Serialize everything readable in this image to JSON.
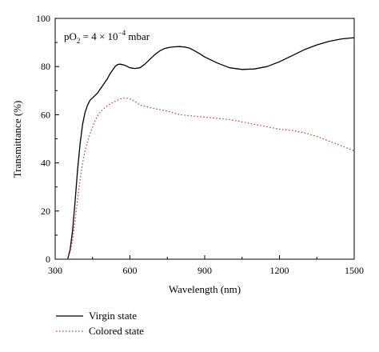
{
  "chart_data": {
    "type": "line",
    "xlabel": "Wavelength (nm)",
    "ylabel": "Transmittance (%)",
    "xlim": [
      300,
      1500
    ],
    "ylim": [
      0,
      100
    ],
    "xticks": [
      300,
      600,
      900,
      1200,
      1500
    ],
    "yticks": [
      0,
      20,
      40,
      60,
      80,
      100
    ],
    "grid": false,
    "legend_position": "bottom-left",
    "annotation": {
      "prefix": "pO",
      "subscript": "2",
      "equals": " = 4 × 10",
      "exponent": "−4",
      "suffix": " mbar"
    },
    "series": [
      {
        "name": "Virgin state",
        "color": "#000000",
        "style": "solid",
        "x": [
          350,
          360,
          370,
          380,
          390,
          400,
          410,
          420,
          430,
          440,
          450,
          460,
          470,
          480,
          490,
          500,
          510,
          520,
          530,
          540,
          550,
          560,
          570,
          580,
          590,
          600,
          620,
          640,
          660,
          680,
          700,
          720,
          740,
          760,
          780,
          800,
          820,
          840,
          860,
          880,
          900,
          950,
          1000,
          1050,
          1100,
          1150,
          1200,
          1250,
          1300,
          1350,
          1400,
          1450,
          1500
        ],
        "y": [
          0,
          4,
          12,
          24,
          37,
          48,
          56,
          61,
          64,
          66,
          67,
          68,
          69,
          70.5,
          72,
          73.5,
          75,
          77,
          78.5,
          80,
          80.8,
          81,
          80.8,
          80.5,
          80,
          79.5,
          79.2,
          79.5,
          81,
          83,
          85,
          86.5,
          87.5,
          88,
          88.2,
          88.3,
          88.1,
          87.6,
          86.5,
          85.3,
          84,
          81.5,
          79.5,
          78.8,
          79,
          80,
          82,
          84.5,
          87,
          89,
          90.5,
          91.5,
          92
        ]
      },
      {
        "name": "Colored state",
        "color": "#c0392b",
        "style": "dotted",
        "x": [
          350,
          360,
          370,
          380,
          390,
          400,
          410,
          420,
          430,
          440,
          450,
          460,
          470,
          480,
          490,
          500,
          520,
          540,
          560,
          580,
          600,
          620,
          640,
          660,
          680,
          700,
          750,
          800,
          850,
          900,
          950,
          1000,
          1050,
          1100,
          1150,
          1200,
          1250,
          1300,
          1350,
          1400,
          1450,
          1500
        ],
        "y": [
          0,
          3,
          8,
          16,
          25,
          33,
          40,
          45,
          49,
          52,
          55,
          57.5,
          59.5,
          61,
          62,
          63,
          64.5,
          65.5,
          66.5,
          67,
          66.5,
          65.5,
          64,
          63.5,
          63,
          62.5,
          61.5,
          60,
          59.5,
          59,
          58.5,
          58,
          57,
          56,
          55,
          54,
          53.5,
          52.5,
          51,
          49,
          47,
          45
        ]
      }
    ]
  }
}
